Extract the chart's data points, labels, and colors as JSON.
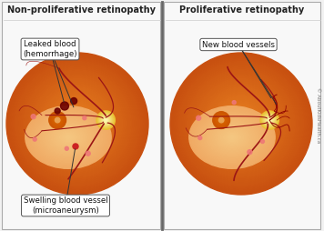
{
  "title_left": "Non-proliferative retinopathy",
  "title_right": "Proliferative retinopathy",
  "bg_color": "#f2f2f2",
  "panel_bg": "#f7f7f7",
  "title_fontsize": 7.0,
  "annotation_fontsize": 6.2,
  "watermark_text": "© AboutKidsHealth.ca",
  "fig_width": 3.56,
  "fig_height": 2.54,
  "dpi": 100
}
